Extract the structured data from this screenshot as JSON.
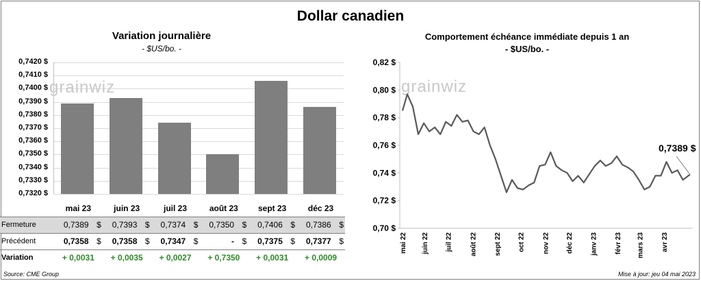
{
  "title": "Dollar canadien",
  "left_chart": {
    "title": "Variation  journalière",
    "unit": "- $US/bo. -"
  },
  "right_chart": {
    "title": "Comportement échéance immédiate depuis 1 an",
    "unit": "- $US/bo. -",
    "last_value_label": "0,7389 $"
  },
  "logo_text": "grainwiz",
  "table": {
    "rows": [
      {
        "label": "Fermeture",
        "values": [
          "0,7389",
          "0,7393",
          "0,7374",
          "0,7350",
          "0,7406",
          "0,7386"
        ]
      },
      {
        "label": "Précédent",
        "values": [
          "0,7358",
          "0,7358",
          "0,7347",
          "-",
          "0,7375",
          "0,7377"
        ]
      },
      {
        "label": "Variation",
        "values": [
          "+ 0,0031",
          "+ 0,0035",
          "+ 0,0027",
          "+ 0,7350",
          "+ 0,0031",
          "+ 0,0009"
        ]
      }
    ],
    "currency": "$"
  },
  "source": "Source: CME Group",
  "updated": "Mise à jour: jeu 04 mai 2023",
  "colors": {
    "bar": "#7f7f7f",
    "line": "#595959",
    "positive": "#2e8b28"
  },
  "chart_data": [
    {
      "type": "bar",
      "title": "Variation  journalière",
      "ylabel": "- $US/bo. -",
      "categories": [
        "mai 23",
        "juin 23",
        "juil 23",
        "août 23",
        "sept 23",
        "déc 23"
      ],
      "values": [
        0.7389,
        0.7393,
        0.7374,
        0.735,
        0.7406,
        0.7386
      ],
      "ylim": [
        0.732,
        0.742
      ],
      "ytick_labels": [
        "0,7420 $",
        "0,7410 $",
        "0,7400 $",
        "0,7390 $",
        "0,7380 $",
        "0,7370 $",
        "0,7360 $",
        "0,7350 $",
        "0,7340 $",
        "0,7330 $",
        "0,7320 $"
      ],
      "grid": true
    },
    {
      "type": "line",
      "title": "Comportement échéance immédiate depuis 1 an",
      "ylabel": "- $US/bo. -",
      "ylim": [
        0.7,
        0.82
      ],
      "ytick_labels": [
        "0,82 $",
        "0,80 $",
        "0,78 $",
        "0,76 $",
        "0,74 $",
        "0,72 $",
        "0,70 $"
      ],
      "xtick_labels": [
        "mai 22",
        "juin 22",
        "juil 22",
        "août 22",
        "sept 22",
        "oct 22",
        "nov 22",
        "déc 22",
        "janv 23",
        "févr 23",
        "mars 23",
        "avr 23"
      ],
      "x": [
        "2022-05-04",
        "2022-05-10",
        "2022-05-17",
        "2022-05-24",
        "2022-05-31",
        "2022-06-07",
        "2022-06-14",
        "2022-06-21",
        "2022-06-28",
        "2022-07-05",
        "2022-07-12",
        "2022-07-19",
        "2022-07-26",
        "2022-08-02",
        "2022-08-09",
        "2022-08-16",
        "2022-08-23",
        "2022-08-30",
        "2022-09-06",
        "2022-09-13",
        "2022-09-20",
        "2022-09-27",
        "2022-10-04",
        "2022-10-11",
        "2022-10-18",
        "2022-10-25",
        "2022-11-01",
        "2022-11-08",
        "2022-11-15",
        "2022-11-22",
        "2022-11-29",
        "2022-12-06",
        "2022-12-13",
        "2022-12-20",
        "2022-12-27",
        "2023-01-03",
        "2023-01-10",
        "2023-01-17",
        "2023-01-24",
        "2023-01-31",
        "2023-02-07",
        "2023-02-14",
        "2023-02-21",
        "2023-02-28",
        "2023-03-07",
        "2023-03-14",
        "2023-03-21",
        "2023-03-28",
        "2023-04-04",
        "2023-04-11",
        "2023-04-18",
        "2023-04-25",
        "2023-05-04"
      ],
      "values": [
        0.785,
        0.797,
        0.788,
        0.768,
        0.776,
        0.77,
        0.773,
        0.768,
        0.777,
        0.774,
        0.782,
        0.777,
        0.778,
        0.77,
        0.768,
        0.773,
        0.76,
        0.75,
        0.738,
        0.726,
        0.735,
        0.729,
        0.728,
        0.731,
        0.733,
        0.745,
        0.746,
        0.755,
        0.745,
        0.742,
        0.74,
        0.734,
        0.738,
        0.733,
        0.739,
        0.745,
        0.749,
        0.745,
        0.747,
        0.752,
        0.746,
        0.744,
        0.741,
        0.735,
        0.728,
        0.73,
        0.738,
        0.738,
        0.748,
        0.74,
        0.742,
        0.735,
        0.7389
      ],
      "last_value": 0.7389,
      "grid": false
    }
  ]
}
